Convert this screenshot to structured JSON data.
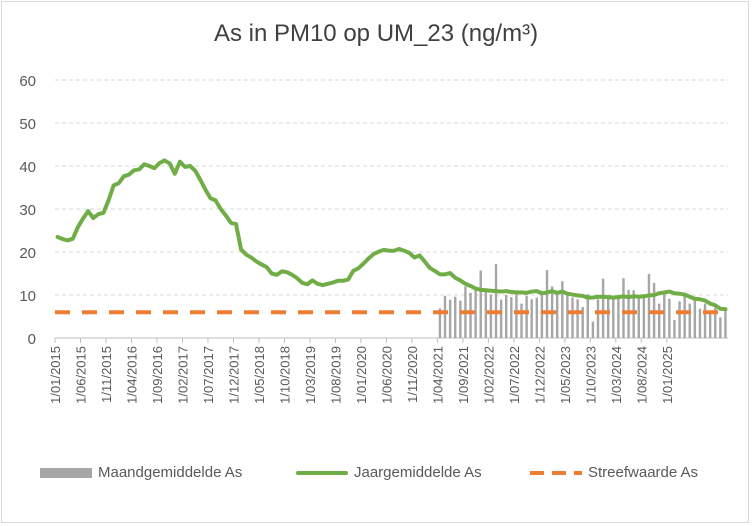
{
  "chart_data": {
    "type": "line",
    "title": "As in PM10 op UM_23 (ng/m³)",
    "xlabel": "",
    "ylabel": "",
    "ylim": [
      0,
      60
    ],
    "yticks": [
      0,
      10,
      20,
      30,
      40,
      50,
      60
    ],
    "grid": "horizontal dashed",
    "legend_position": "bottom",
    "x_tick_labels": [
      "1/01/2015",
      "1/06/2015",
      "1/11/2015",
      "1/04/2016",
      "1/09/2016",
      "1/02/2017",
      "1/07/2017",
      "1/12/2017",
      "1/05/2018",
      "1/10/2018",
      "1/03/2019",
      "1/08/2019",
      "1/01/2020",
      "1/06/2020",
      "1/11/2020",
      "1/04/2021",
      "1/09/2021",
      "1/02/2022",
      "1/07/2022",
      "1/12/2022",
      "1/05/2023",
      "1/10/2023",
      "1/03/2024",
      "1/08/2024",
      "1/01/2025"
    ],
    "x_start": "2015-01",
    "series": [
      {
        "name": "Maandgemiddelde As",
        "type": "bar",
        "color": "#a6a6a6",
        "start": "2021-04",
        "values": [
          6.9,
          9.8,
          8.9,
          9.6,
          8.7,
          12.0,
          10.5,
          11.2,
          15.7,
          11.0,
          10.1,
          17.2,
          8.9,
          10.0,
          9.5,
          10.2,
          8.0,
          9.8,
          9.0,
          9.4,
          10.3,
          15.8,
          12.0,
          10.7,
          13.2,
          10.1,
          9.4,
          9.0,
          7.2,
          10.2,
          3.8,
          9.0,
          13.8,
          9.8,
          9.2,
          9.2,
          13.9,
          11.2,
          11.1,
          10.0,
          9.5,
          14.9,
          12.8,
          8.0,
          10.4,
          9.1,
          4.2,
          8.5,
          10.1,
          8.0,
          9.6,
          6.8,
          8.0,
          6.2,
          7.0,
          4.8,
          6.4
        ]
      },
      {
        "name": "Jaargemiddelde As",
        "type": "line",
        "color": "#70ad47",
        "start": "2015-01",
        "values": [
          23.5,
          23.0,
          22.7,
          23.1,
          25.8,
          27.8,
          29.5,
          27.9,
          28.8,
          29.1,
          32.0,
          35.5,
          36.0,
          37.6,
          38.0,
          39.0,
          39.2,
          40.4,
          40.0,
          39.5,
          40.7,
          41.3,
          40.6,
          38.2,
          41.0,
          39.8,
          40.0,
          38.9,
          36.8,
          34.5,
          32.5,
          32.0,
          30.0,
          28.5,
          26.8,
          26.5,
          20.6,
          19.4,
          18.7,
          17.8,
          17.1,
          16.5,
          15.0,
          14.7,
          15.5,
          15.3,
          14.7,
          13.9,
          12.8,
          12.5,
          13.4,
          12.6,
          12.3,
          12.6,
          12.9,
          13.3,
          13.3,
          13.6,
          15.6,
          16.2,
          17.3,
          18.5,
          19.5,
          20.1,
          20.5,
          20.3,
          20.3,
          20.7,
          20.3,
          19.8,
          18.7,
          19.2,
          17.8,
          16.3,
          15.6,
          14.8,
          14.8,
          15.1,
          14.0,
          13.4,
          12.6,
          12.1,
          11.5,
          11.2,
          11.1,
          11.0,
          10.9,
          10.8,
          10.9,
          10.7,
          10.6,
          10.6,
          10.5,
          10.8,
          10.9,
          10.4,
          10.6,
          10.9,
          10.5,
          10.8,
          10.3,
          10.1,
          9.9,
          9.8,
          9.4,
          9.4,
          9.6,
          9.6,
          9.5,
          9.4,
          9.5,
          9.7,
          9.5,
          9.7,
          9.6,
          9.7,
          9.9,
          10.0,
          10.4,
          10.6,
          10.8,
          10.4,
          10.3,
          10.1,
          9.6,
          9.1,
          9.0,
          8.7,
          8.0,
          7.6,
          6.8,
          6.7
        ]
      },
      {
        "name": "Streefwaarde As",
        "type": "line-dashed",
        "color": "#ed7d31",
        "start": "2015-01",
        "constant": 6
      }
    ]
  }
}
